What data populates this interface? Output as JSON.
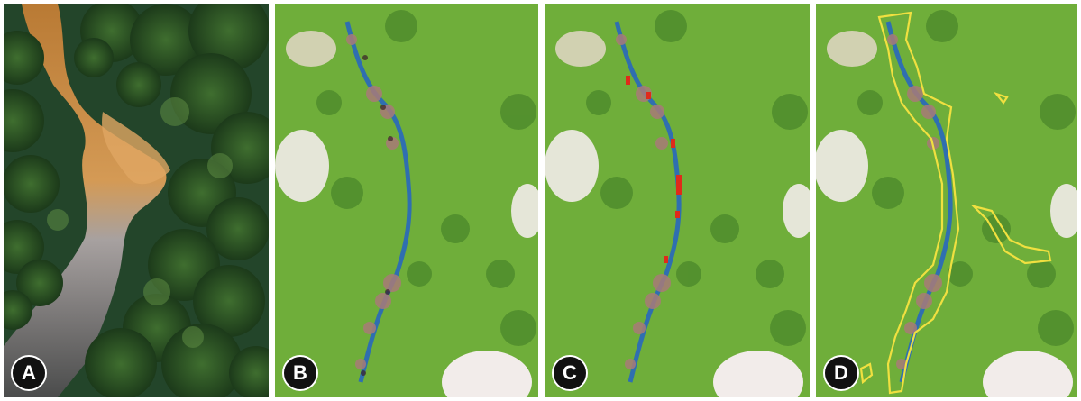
{
  "panels": [
    {
      "label": "A",
      "kind": "aerial-photo"
    },
    {
      "label": "B",
      "kind": "satellite-image"
    },
    {
      "label": "C",
      "kind": "satellite-image-detection"
    },
    {
      "label": "D",
      "kind": "satellite-image-outline"
    }
  ],
  "colors": {
    "forest_green": "#6fae3a",
    "river_blue": "#2f6fb0",
    "sediment_orange": "#c98a3a",
    "detection_red": "#e02a1a",
    "outline_yellow": "#f0e040",
    "cloud_white": "#f2ecea",
    "badge_bg": "#111111"
  }
}
